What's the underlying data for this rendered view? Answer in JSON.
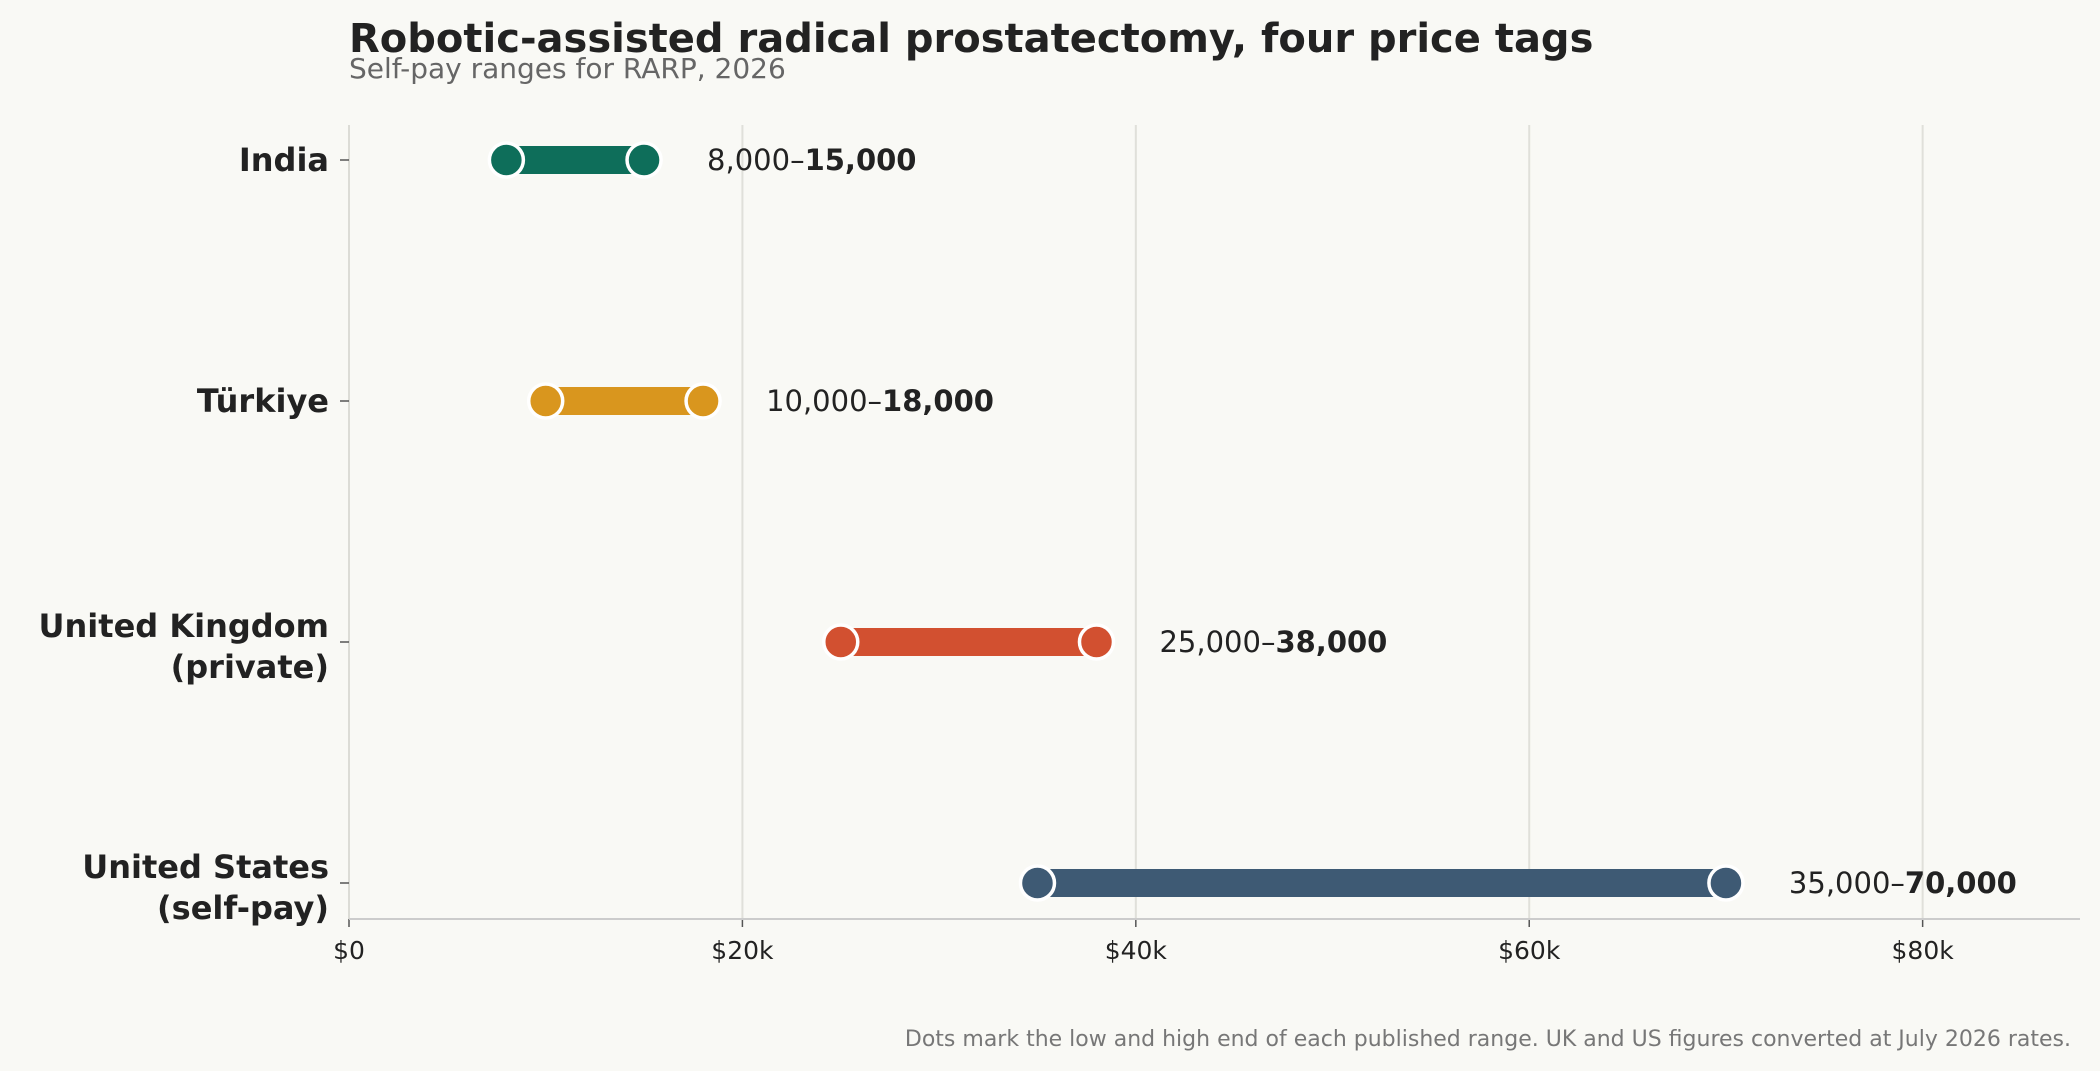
{
  "chart_data": {
    "type": "dumbbell",
    "title": "Robotic-assisted radical prostatectomy, four price tags",
    "subtitle": "Self-pay ranges for RARP, 2026",
    "footnote": "Dots mark the low and high end of each published range. UK and US figures converted at July 2026 rates.",
    "xlim": [
      0,
      88000
    ],
    "x_ticks": [
      {
        "value": 0,
        "label": "$0"
      },
      {
        "value": 20000,
        "label": "$20k"
      },
      {
        "value": 40000,
        "label": "$40k"
      },
      {
        "value": 60000,
        "label": "$60k"
      },
      {
        "value": 80000,
        "label": "$80k"
      }
    ],
    "grid": "vertical",
    "categories": [
      {
        "lines": [
          "India"
        ],
        "low": 8000,
        "high": 15000,
        "color": "#0e6e5a",
        "label_low": "8,000–",
        "label_high": "15,000"
      },
      {
        "lines": [
          "Türkiye"
        ],
        "low": 10000,
        "high": 18000,
        "color": "#d9961e",
        "label_low": "10,000–",
        "label_high": "18,000"
      },
      {
        "lines": [
          "United Kingdom",
          "(private)"
        ],
        "low": 25000,
        "high": 38000,
        "color": "#d25030",
        "label_low": "25,000–",
        "label_high": "38,000"
      },
      {
        "lines": [
          "United States",
          "(self-pay)"
        ],
        "low": 35000,
        "high": 70000,
        "color": "#3e5a74",
        "label_low": "35,000–",
        "label_high": "70,000"
      }
    ]
  }
}
